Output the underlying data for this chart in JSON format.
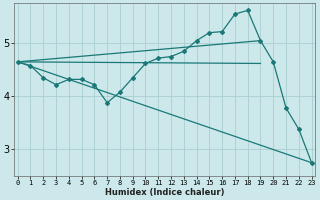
{
  "xlabel": "Humidex (Indice chaleur)",
  "background_color": "#cce8ea",
  "grid_color": "#aacfd2",
  "line_color": "#1a7878",
  "x_ticks": [
    0,
    1,
    2,
    3,
    4,
    5,
    6,
    7,
    8,
    9,
    10,
    11,
    12,
    13,
    14,
    15,
    16,
    17,
    18,
    19,
    20,
    21,
    22,
    23
  ],
  "y_ticks": [
    3,
    4,
    5
  ],
  "ylim": [
    2.5,
    5.75
  ],
  "xlim": [
    -0.3,
    23.3
  ],
  "line1_x": [
    0,
    1,
    2,
    3,
    4,
    5,
    6,
    7,
    8,
    9,
    10,
    11,
    12,
    13,
    14,
    15,
    16,
    17,
    18,
    19,
    20,
    21,
    22,
    23
  ],
  "line1_y": [
    4.65,
    4.58,
    4.35,
    4.22,
    4.32,
    4.32,
    4.22,
    3.88,
    4.08,
    4.35,
    4.62,
    4.72,
    4.75,
    4.85,
    5.05,
    5.2,
    5.22,
    5.55,
    5.62,
    5.05,
    4.65,
    3.78,
    3.38,
    2.75
  ],
  "line2_x": [
    0,
    23
  ],
  "line2_y": [
    4.65,
    2.75
  ],
  "line3_x": [
    0,
    19
  ],
  "line3_y": [
    4.65,
    4.62
  ],
  "line4_x": [
    0,
    19
  ],
  "line4_y": [
    4.65,
    5.05
  ]
}
